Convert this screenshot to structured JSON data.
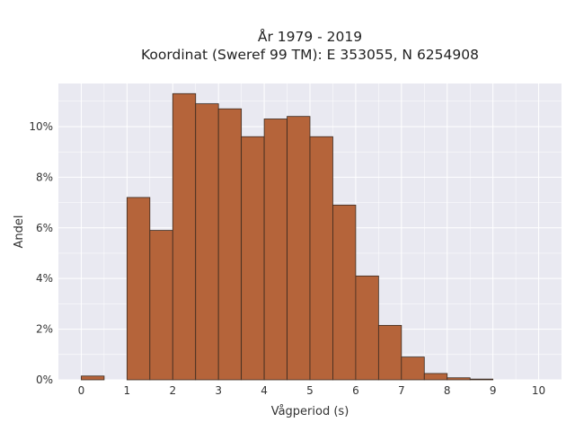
{
  "chart_data": {
    "type": "bar",
    "title_line1": "År 1979 - 2019",
    "title_line2": "Koordinat (Sweref 99 TM): E 353055, N 6254908",
    "xlabel": "Vågperiod (s)",
    "ylabel": "Andel",
    "xlim": [
      -0.5,
      10.5
    ],
    "ylim": [
      0,
      11.7
    ],
    "xticks": [
      0,
      1,
      2,
      3,
      4,
      5,
      6,
      7,
      8,
      9,
      10
    ],
    "yticks": [
      0,
      2,
      4,
      6,
      8,
      10
    ],
    "ytick_labels": [
      "0%",
      "2%",
      "4%",
      "6%",
      "8%",
      "10%"
    ],
    "bin_width": 0.5,
    "bins": [
      {
        "x": 0.0,
        "value": 0.15
      },
      {
        "x": 0.5,
        "value": 0.0
      },
      {
        "x": 1.0,
        "value": 7.2
      },
      {
        "x": 1.5,
        "value": 5.9
      },
      {
        "x": 2.0,
        "value": 11.3
      },
      {
        "x": 2.5,
        "value": 10.9
      },
      {
        "x": 3.0,
        "value": 10.7
      },
      {
        "x": 3.5,
        "value": 9.6
      },
      {
        "x": 4.0,
        "value": 10.3
      },
      {
        "x": 4.5,
        "value": 10.4
      },
      {
        "x": 5.0,
        "value": 9.6
      },
      {
        "x": 5.5,
        "value": 6.9
      },
      {
        "x": 6.0,
        "value": 4.1
      },
      {
        "x": 6.5,
        "value": 2.15
      },
      {
        "x": 7.0,
        "value": 0.9
      },
      {
        "x": 7.5,
        "value": 0.25
      },
      {
        "x": 8.0,
        "value": 0.08
      },
      {
        "x": 8.5,
        "value": 0.03
      },
      {
        "x": 9.0,
        "value": 0.0
      },
      {
        "x": 9.5,
        "value": 0.0
      }
    ],
    "grid": true,
    "colors": {
      "bar_fill": "#B5643A",
      "bar_stroke": "#3a2a20",
      "plot_bg": "#E9E9F1",
      "grid": "#FFFFFF"
    }
  }
}
